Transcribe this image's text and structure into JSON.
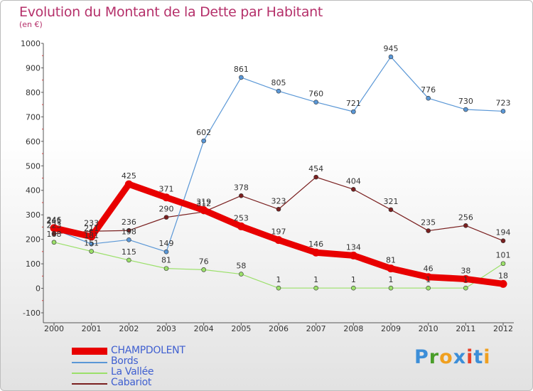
{
  "title": "Evolution du Montant de la Dette par Habitant",
  "subtitle": "(en €)",
  "logo": {
    "letters": [
      "P",
      "r",
      "o",
      "x",
      "i",
      "t",
      "i"
    ],
    "colors": [
      "#3c8ed8",
      "#4a9e2a",
      "#f0a020",
      "#3c8ed8",
      "#e8402a",
      "#3c8ed8",
      "#f0a020"
    ]
  },
  "chart_data": {
    "type": "line",
    "title": "Evolution du Montant de la Dette par Habitant",
    "subtitle": "(en €)",
    "xlabel": "",
    "ylabel": "",
    "x": [
      "2000",
      "2001",
      "2002",
      "2003",
      "2004",
      "2005",
      "2006",
      "2007",
      "2008",
      "2009",
      "2010",
      "2011",
      "2012"
    ],
    "ylim": [
      -100,
      1000
    ],
    "yticks": [
      -100,
      0,
      100,
      200,
      300,
      400,
      500,
      600,
      700,
      800,
      900,
      1000
    ],
    "grid": false,
    "legend_position": "bottom-left",
    "series": [
      {
        "name": "CHAMPDOLENT",
        "color": "#e80000",
        "values": [
          246,
          211,
          425,
          371,
          319,
          253,
          197,
          146,
          134,
          81,
          46,
          38,
          18
        ]
      },
      {
        "name": "Bords",
        "color": "#5a97d6",
        "values": [
          241,
          181,
          198,
          149,
          602,
          861,
          805,
          760,
          721,
          945,
          776,
          730,
          723
        ]
      },
      {
        "name": "La Vallée",
        "color": "#9be06a",
        "values": [
          188,
          151,
          115,
          81,
          76,
          58,
          1,
          1,
          1,
          1,
          1,
          1,
          101
        ]
      },
      {
        "name": "Cabariot",
        "color": "#7a2020",
        "values": [
          223,
          233,
          236,
          290,
          312,
          378,
          323,
          454,
          404,
          321,
          235,
          256,
          194
        ]
      }
    ]
  }
}
